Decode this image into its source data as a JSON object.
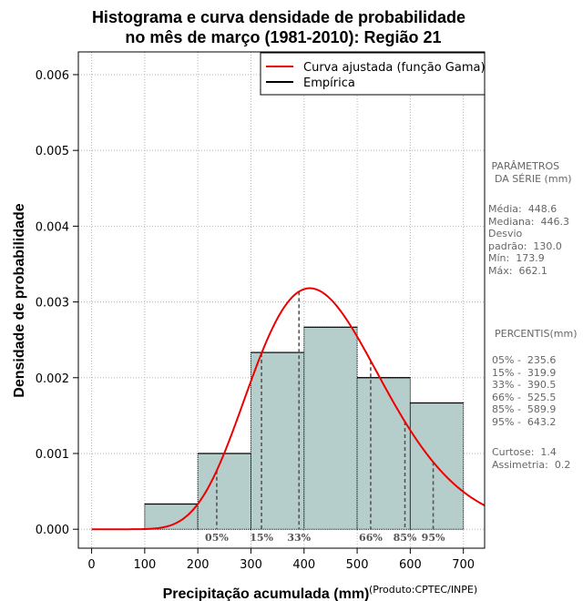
{
  "chart_data": {
    "type": "bar",
    "title_lines": [
      "Histograma e curva densidade de probabilidade",
      "no mês de março (1981-2010): Região 21"
    ],
    "xlabel": "Precipitação acumulada (mm)",
    "ylabel": "Densidade de probabilidade",
    "credit": "(Produto:CPTEC/INPE)",
    "xlim": [
      -25,
      740
    ],
    "ylim": [
      -0.00025,
      0.0063
    ],
    "x_ticks": [
      0,
      100,
      200,
      300,
      400,
      500,
      600,
      700
    ],
    "x_tick_labels": [
      "0",
      "100",
      "200",
      "300",
      "400",
      "500",
      "600",
      "700"
    ],
    "y_ticks": [
      0,
      0.001,
      0.002,
      0.003,
      0.004,
      0.005,
      0.006
    ],
    "y_tick_labels": [
      "0.000",
      "0.001",
      "0.002",
      "0.003",
      "0.004",
      "0.005",
      "0.006"
    ],
    "grid": true,
    "colors": {
      "bar_fill": "#b5cdcb",
      "curve": "#ee0000",
      "grid": "#b4b4b4",
      "dashed": "#555555"
    },
    "histogram": {
      "bins": [
        [
          100,
          200
        ],
        [
          200,
          300
        ],
        [
          300,
          400
        ],
        [
          400,
          500
        ],
        [
          500,
          600
        ],
        [
          600,
          700
        ]
      ],
      "density": [
        0.000333,
        0.001,
        0.002333,
        0.002667,
        0.002,
        0.001667
      ]
    },
    "gamma_fit": {
      "shape": 11.9,
      "scale": 37.7,
      "x_range": [
        0,
        740
      ]
    },
    "percentiles": [
      {
        "label": "05%",
        "value": 235.6
      },
      {
        "label": "15%",
        "value": 319.9
      },
      {
        "label": "33%",
        "value": 390.5
      },
      {
        "label": "66%",
        "value": 525.5
      },
      {
        "label": "85%",
        "value": 589.9
      },
      {
        "label": "95%",
        "value": 643.2
      }
    ],
    "legend": {
      "position": "top-right",
      "entries": [
        {
          "label": "Curva ajustada (função Gama)",
          "color": "#ee0000"
        },
        {
          "label": "Empírica",
          "color": "#000000"
        }
      ]
    }
  },
  "side_panel": {
    "params_title": " PARÂMETROS\n  DA SÉRIE (mm)",
    "params_body": "Média:  448.6\nMediana:  446.3\nDesvio\npadrão:  130.0\nMín:  173.9\nMáx:  662.1",
    "pct_title": "PERCENTIS(mm)",
    "pct_body": "05% -  235.6\n15% -  319.9\n33% -  390.5\n66% -  525.5\n85% -  589.9\n95% -  643.2",
    "stats_body": "Curtose:  1.4\nAssimetria:  0.2"
  }
}
